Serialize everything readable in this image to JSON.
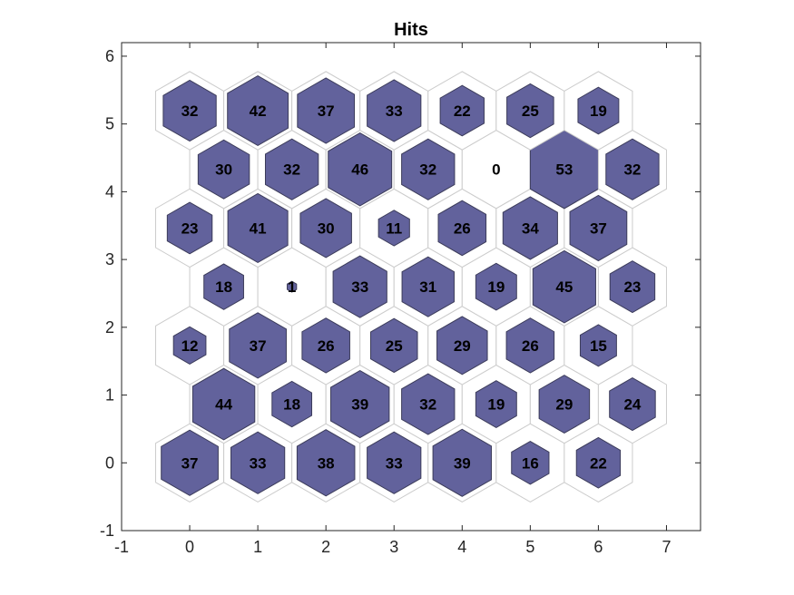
{
  "chart_data": {
    "type": "heatmap",
    "subtype": "som-hits-hexagonal",
    "title": "Hits",
    "xlim": [
      -1,
      7.5
    ],
    "ylim": [
      -1,
      6.2
    ],
    "x_ticks": [
      -1,
      0,
      1,
      2,
      3,
      4,
      5,
      6,
      7
    ],
    "y_ticks": [
      -1,
      0,
      1,
      2,
      3,
      4,
      5,
      6
    ],
    "x_tick_labels": [
      "-1",
      "0",
      "1",
      "2",
      "3",
      "4",
      "5",
      "6",
      "7"
    ],
    "y_tick_labels": [
      "-1",
      "0",
      "1",
      "2",
      "3",
      "4",
      "5",
      "6"
    ],
    "grid": false,
    "colors": {
      "fill": "#62629c",
      "outline": "#cccccc",
      "edge": "#3c3c5a",
      "axis": "#262626"
    },
    "max_hits": 53,
    "cells": [
      {
        "x": 0.0,
        "y": 0.0,
        "hits": 37
      },
      {
        "x": 1.0,
        "y": 0.0,
        "hits": 33
      },
      {
        "x": 2.0,
        "y": 0.0,
        "hits": 38
      },
      {
        "x": 3.0,
        "y": 0.0,
        "hits": 33
      },
      {
        "x": 4.0,
        "y": 0.0,
        "hits": 39
      },
      {
        "x": 5.0,
        "y": 0.0,
        "hits": 16
      },
      {
        "x": 6.0,
        "y": 0.0,
        "hits": 22
      },
      {
        "x": 0.5,
        "y": 0.866,
        "hits": 44
      },
      {
        "x": 1.5,
        "y": 0.866,
        "hits": 18
      },
      {
        "x": 2.5,
        "y": 0.866,
        "hits": 39
      },
      {
        "x": 3.5,
        "y": 0.866,
        "hits": 32
      },
      {
        "x": 4.5,
        "y": 0.866,
        "hits": 19
      },
      {
        "x": 5.5,
        "y": 0.866,
        "hits": 29
      },
      {
        "x": 6.5,
        "y": 0.866,
        "hits": 24
      },
      {
        "x": 0.0,
        "y": 1.732,
        "hits": 12
      },
      {
        "x": 1.0,
        "y": 1.732,
        "hits": 37
      },
      {
        "x": 2.0,
        "y": 1.732,
        "hits": 26
      },
      {
        "x": 3.0,
        "y": 1.732,
        "hits": 25
      },
      {
        "x": 4.0,
        "y": 1.732,
        "hits": 29
      },
      {
        "x": 5.0,
        "y": 1.732,
        "hits": 26
      },
      {
        "x": 6.0,
        "y": 1.732,
        "hits": 15
      },
      {
        "x": 0.5,
        "y": 2.598,
        "hits": 18
      },
      {
        "x": 1.5,
        "y": 2.598,
        "hits": 1
      },
      {
        "x": 2.5,
        "y": 2.598,
        "hits": 33
      },
      {
        "x": 3.5,
        "y": 2.598,
        "hits": 31
      },
      {
        "x": 4.5,
        "y": 2.598,
        "hits": 19
      },
      {
        "x": 5.5,
        "y": 2.598,
        "hits": 45
      },
      {
        "x": 6.5,
        "y": 2.598,
        "hits": 23
      },
      {
        "x": 0.0,
        "y": 3.464,
        "hits": 23
      },
      {
        "x": 1.0,
        "y": 3.464,
        "hits": 41
      },
      {
        "x": 2.0,
        "y": 3.464,
        "hits": 30
      },
      {
        "x": 3.0,
        "y": 3.464,
        "hits": 11
      },
      {
        "x": 4.0,
        "y": 3.464,
        "hits": 26
      },
      {
        "x": 5.0,
        "y": 3.464,
        "hits": 34
      },
      {
        "x": 6.0,
        "y": 3.464,
        "hits": 37
      },
      {
        "x": 0.5,
        "y": 4.33,
        "hits": 30
      },
      {
        "x": 1.5,
        "y": 4.33,
        "hits": 32
      },
      {
        "x": 2.5,
        "y": 4.33,
        "hits": 46
      },
      {
        "x": 3.5,
        "y": 4.33,
        "hits": 32
      },
      {
        "x": 4.5,
        "y": 4.33,
        "hits": 0
      },
      {
        "x": 5.5,
        "y": 4.33,
        "hits": 53
      },
      {
        "x": 6.5,
        "y": 4.33,
        "hits": 32
      },
      {
        "x": 0.0,
        "y": 5.196,
        "hits": 32
      },
      {
        "x": 1.0,
        "y": 5.196,
        "hits": 42
      },
      {
        "x": 2.0,
        "y": 5.196,
        "hits": 37
      },
      {
        "x": 3.0,
        "y": 5.196,
        "hits": 33
      },
      {
        "x": 4.0,
        "y": 5.196,
        "hits": 22
      },
      {
        "x": 5.0,
        "y": 5.196,
        "hits": 25
      },
      {
        "x": 6.0,
        "y": 5.196,
        "hits": 19
      }
    ]
  }
}
